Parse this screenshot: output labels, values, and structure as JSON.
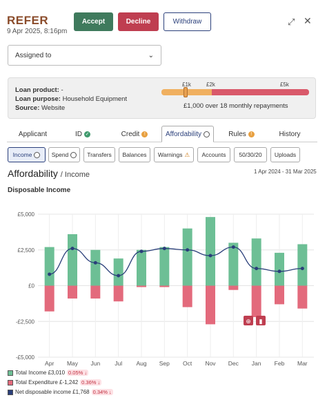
{
  "header": {
    "title": "REFER",
    "date": "9 Apr 2025, 8:16pm",
    "accept": "Accept",
    "decline": "Decline",
    "withdraw": "Withdraw"
  },
  "assign": {
    "label": "Assigned to"
  },
  "loan": {
    "product_label": "Loan product:",
    "product_value": "-",
    "purpose_label": "Loan purpose:",
    "purpose_value": "Household Equipment",
    "source_label": "Source:",
    "source_value": "Website",
    "scale": [
      "£1k",
      "£2k",
      "£5k"
    ],
    "repayment": "£1,000 over 18 monthly repayments"
  },
  "tabs": [
    "Applicant",
    "ID",
    "Credit",
    "Affordability",
    "Rules",
    "History"
  ],
  "subtabs": [
    "Income",
    "Spend",
    "Transfers",
    "Balances",
    "Warnings",
    "Accounts",
    "50/30/20",
    "Uploads"
  ],
  "section": {
    "title": "Affordability",
    "subtitle": "/ Income",
    "range": "1 Apr 2024 - 31 Mar 2025",
    "chart_title": "Disposable Income"
  },
  "legend": [
    {
      "label": "Total Income £3,010",
      "pill": "0.05% ↓",
      "color": "#6dbf95"
    },
    {
      "label": "Total Expenditure £-1,242",
      "pill": "0.36% ↓",
      "color": "#e36a7c"
    },
    {
      "label": "Net disposable income £1,768",
      "pill": "0.34% ↓",
      "color": "#2a3f7a"
    }
  ],
  "chart_data": {
    "type": "bar",
    "categories": [
      "Apr",
      "May",
      "Jun",
      "Jul",
      "Aug",
      "Sep",
      "Oct",
      "Nov",
      "Dec",
      "Jan",
      "Feb",
      "Mar"
    ],
    "yticks": [
      "£5,000",
      "£2,500",
      "£0",
      "-£2,500",
      "-£5,000"
    ],
    "ylim": [
      -5000,
      5000
    ],
    "series": [
      {
        "name": "Total Income",
        "values": [
          2700,
          3600,
          2500,
          1900,
          2500,
          2700,
          4000,
          4800,
          3000,
          3300,
          2300,
          2900
        ]
      },
      {
        "name": "Total Expenditure",
        "values": [
          -1800,
          -900,
          -900,
          -1100,
          -100,
          -100,
          -1500,
          -2700,
          -300,
          -2200,
          -1300,
          -1600
        ]
      },
      {
        "name": "Net disposable income",
        "values": [
          800,
          2600,
          1600,
          700,
          2400,
          2600,
          2500,
          2100,
          2700,
          1200,
          1000,
          1200
        ]
      }
    ],
    "colors": {
      "income": "#6dbf95",
      "expenditure": "#e36a7c",
      "net": "#2a3f7a"
    }
  }
}
